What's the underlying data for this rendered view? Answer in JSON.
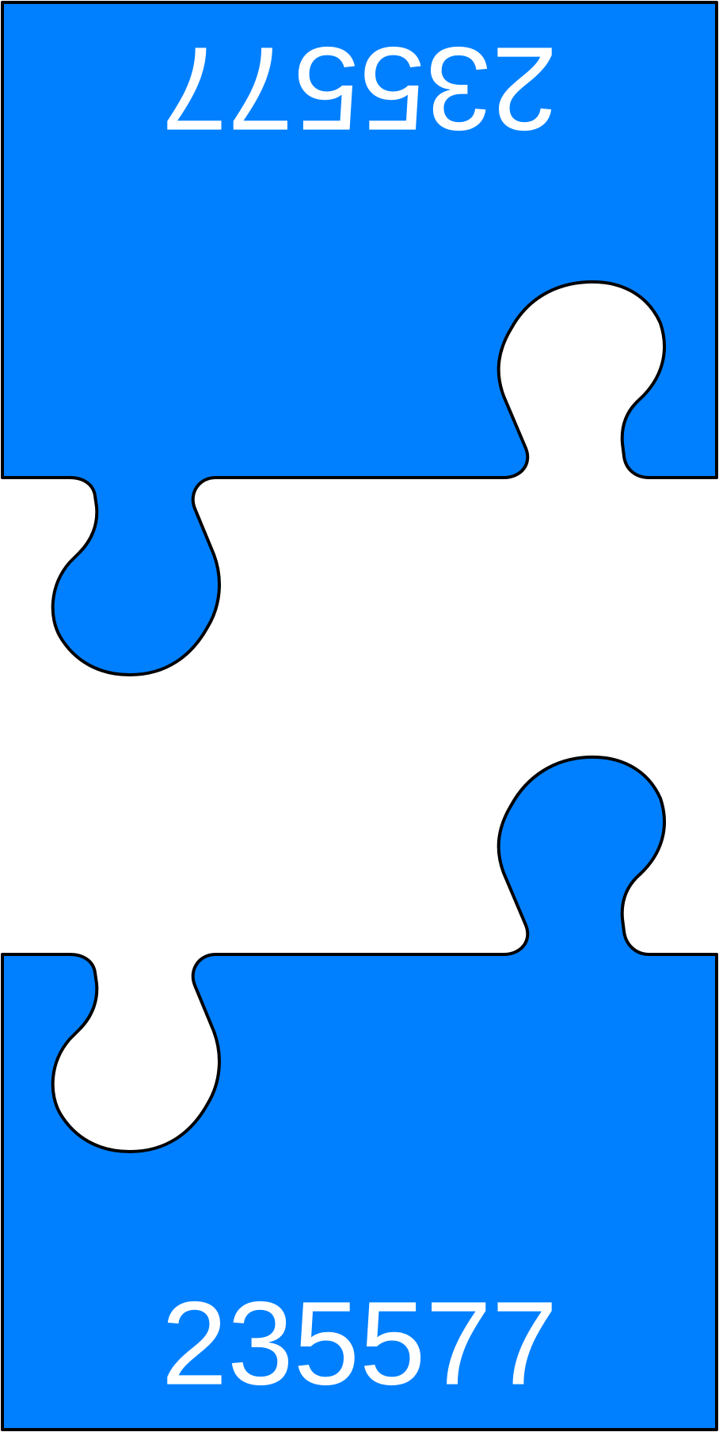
{
  "pieces": [
    {
      "id": "top",
      "number": "235577",
      "rotated": true
    },
    {
      "id": "bottom",
      "number": "235577",
      "rotated": false
    }
  ],
  "colors": {
    "piece_fill": "#0080ff",
    "outline": "#000000",
    "text": "#ffffff",
    "background": "#ffffff"
  }
}
